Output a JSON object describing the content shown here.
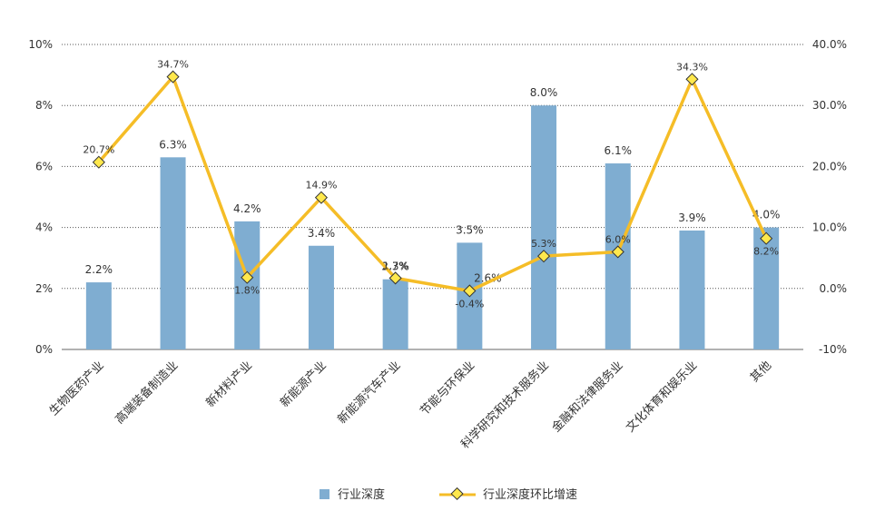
{
  "chart_data": {
    "type": "bar",
    "categories": [
      "生物医药产业",
      "高端装备制造业",
      "新材料产业",
      "新能源产业",
      "新能源汽车产业",
      "节能与环保业",
      "科学研究和技术服务业",
      "金融和法律服务业",
      "文化体育和娱乐业",
      "其他"
    ],
    "series": [
      {
        "name": "行业深度",
        "type": "bar",
        "axis": "left",
        "color": "#7fadd1",
        "values": [
          2.2,
          6.3,
          4.2,
          3.4,
          2.3,
          3.5,
          8.0,
          6.1,
          3.9,
          4.0
        ],
        "labels": [
          "2.2%",
          "6.3%",
          "4.2%",
          "3.4%",
          "2.3%",
          "3.5%",
          "8.0%",
          "6.1%",
          "3.9%",
          "4.0%"
        ]
      },
      {
        "name": "行业深度环比增速",
        "type": "line",
        "axis": "right",
        "color": "#f5bd27",
        "marker_color": "#ffe84d",
        "marker_stroke": "#333333",
        "values": [
          20.7,
          34.7,
          1.8,
          14.9,
          1.7,
          -0.4,
          5.3,
          6.0,
          34.3,
          8.2
        ],
        "labels": [
          "20.7%",
          "34.7%",
          "1.8%",
          "14.9%",
          "1.7%",
          "-0.4%",
          "5.3%",
          "6.0%",
          "34.3%",
          "8.2%"
        ]
      }
    ],
    "extra_annotations": [
      {
        "category_index": 5,
        "value": 2.6,
        "text": "2.6%"
      }
    ],
    "y_left": {
      "lim": [
        0,
        10
      ],
      "ticks": [
        "0%",
        "2%",
        "4%",
        "6%",
        "8%",
        "10%"
      ],
      "tick_values": [
        0,
        2,
        4,
        6,
        8,
        10
      ]
    },
    "y_right": {
      "lim": [
        -10,
        40
      ],
      "ticks": [
        "-10%",
        "0.0%",
        "10.0%",
        "20.0%",
        "30.0%",
        "40.0%"
      ],
      "tick_values": [
        -10,
        0,
        10,
        20,
        30,
        40
      ]
    },
    "grid": true,
    "legend_position": "bottom-center",
    "title": "",
    "xlabel": "",
    "ylabel": ""
  }
}
